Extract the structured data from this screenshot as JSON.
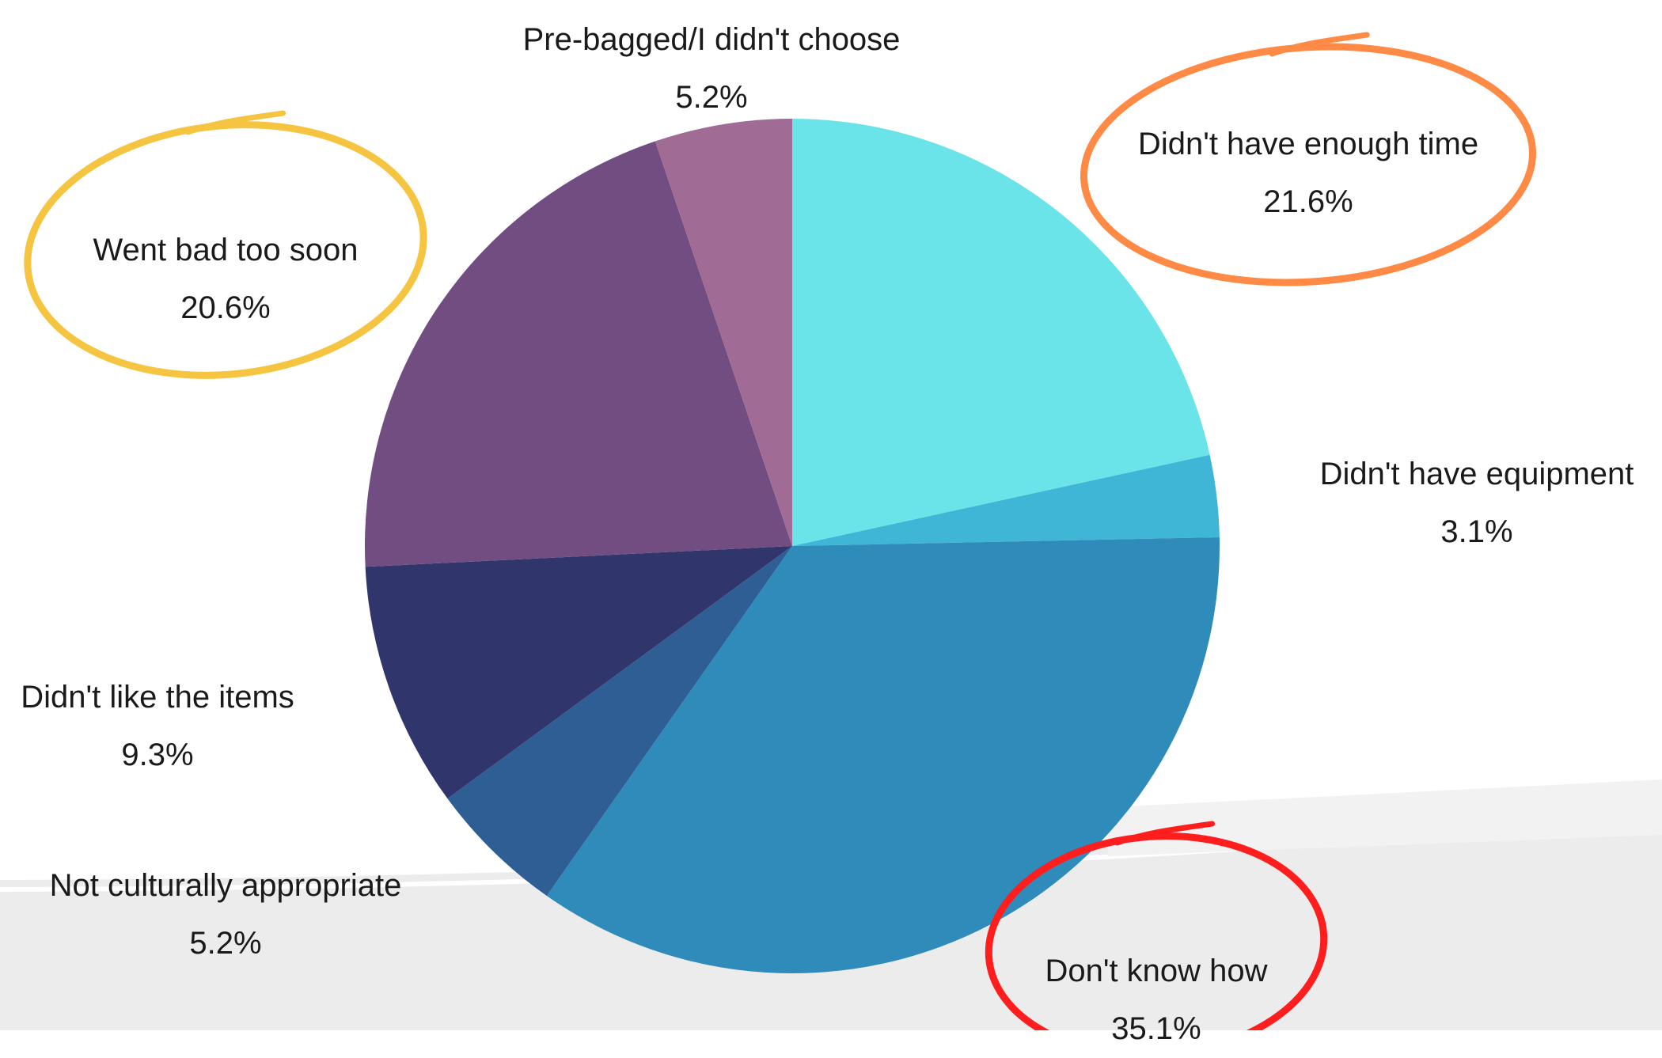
{
  "chart_data": {
    "type": "pie",
    "title": "",
    "slices": [
      {
        "label": "Didn't have enough time",
        "value": 21.6,
        "value_label": "21.6%",
        "color": "#6ae4e8",
        "highlight": "#ff8a45"
      },
      {
        "label": "Didn't have equipment",
        "value": 3.1,
        "value_label": "3.1%",
        "color": "#40b6d6",
        "highlight": ""
      },
      {
        "label": "Don't know how",
        "value": 35.1,
        "value_label": "35.1%",
        "color": "#2e8bba",
        "highlight": "#ff1e1e"
      },
      {
        "label": "Not culturally appropriate",
        "value": 5.2,
        "value_label": "5.2%",
        "color": "#2e5e94",
        "highlight": ""
      },
      {
        "label": "Didn't like the items",
        "value": 9.3,
        "value_label": "9.3%",
        "color": "#30356b",
        "highlight": ""
      },
      {
        "label": "Went bad too soon",
        "value": 20.6,
        "value_label": "20.6%",
        "color": "#714d82",
        "highlight": "#f5c542"
      },
      {
        "label": "Pre-bagged/I didn't choose",
        "value": 5.2,
        "value_label": "5.2%",
        "color": "#a06c96",
        "highlight": ""
      }
    ],
    "start": "12 o'clock",
    "direction": "clockwise",
    "legend": "none"
  }
}
